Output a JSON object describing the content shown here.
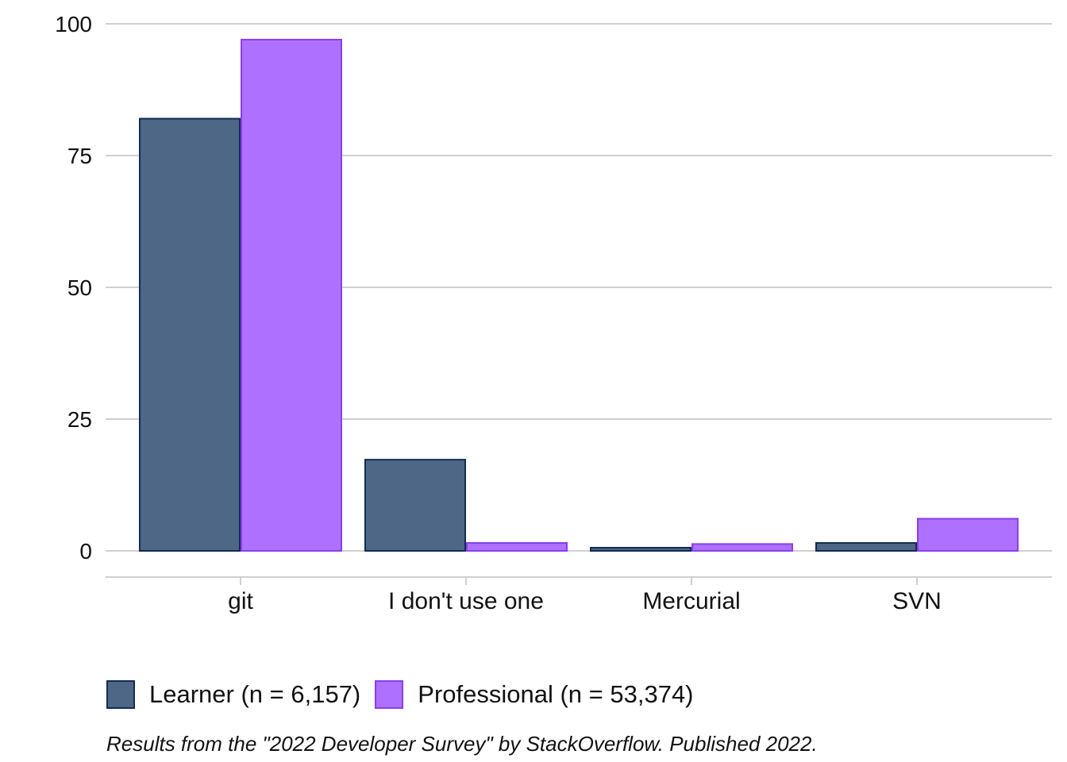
{
  "chart_data": {
    "type": "bar",
    "categories": [
      "git",
      "I don't use one",
      "Mercurial",
      "SVN"
    ],
    "series": [
      {
        "name": "Learner (n = 6,157)",
        "values": [
          82,
          17.3,
          0.6,
          1.5
        ],
        "color": "#4e6787",
        "stroke": "#122c52"
      },
      {
        "name": "Professional (n = 53,374)",
        "values": [
          97,
          1.5,
          1.3,
          6.1
        ],
        "color": "#ad70ff",
        "stroke": "#8b3ee8"
      }
    ],
    "ylim": [
      0,
      100
    ],
    "yticks": [
      0,
      25,
      50,
      75,
      100
    ],
    "grid": true,
    "legend_position": "bottom",
    "caption": "Results from the \"2022 Developer Survey\" by StackOverflow. Published 2022."
  }
}
